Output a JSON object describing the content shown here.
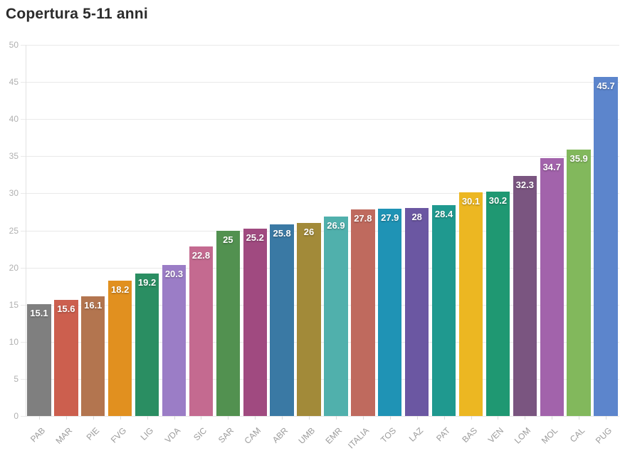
{
  "title": "Copertura 5-11 anni",
  "chart_data": {
    "type": "bar",
    "title": "Copertura 5-11 anni",
    "xlabel": "",
    "ylabel": "",
    "ylim": [
      0,
      50
    ],
    "yticks": [
      0,
      5,
      10,
      15,
      20,
      25,
      30,
      35,
      40,
      45,
      50
    ],
    "grid": true,
    "legend": "none",
    "value_label_position": "inside-top",
    "categories": [
      "PAB",
      "MAR",
      "PIE",
      "FVG",
      "LIG",
      "VDA",
      "SIC",
      "SAR",
      "CAM",
      "ABR",
      "UMB",
      "EMR",
      "ITALIA",
      "TOS",
      "LAZ",
      "PAT",
      "BAS",
      "VEN",
      "LOM",
      "MOL",
      "CAL",
      "PUG"
    ],
    "values": [
      15.1,
      15.6,
      16.1,
      18.2,
      19.2,
      20.3,
      22.8,
      25,
      25.2,
      25.8,
      26,
      26.9,
      27.8,
      27.9,
      28,
      28.4,
      30.1,
      30.2,
      32.3,
      34.7,
      35.9,
      45.7
    ],
    "value_labels": [
      "15.1",
      "15.6",
      "16.1",
      "18.2",
      "19.2",
      "20.3",
      "22.8",
      "25",
      "25.2",
      "25.8",
      "26",
      "26.9",
      "27.8",
      "27.9",
      "28",
      "28.4",
      "30.1",
      "30.2",
      "32.3",
      "34.7",
      "35.9",
      "45.7"
    ],
    "bar_colors": [
      "#7f7f7f",
      "#cc5f4e",
      "#b3754f",
      "#e1901f",
      "#2a8e62",
      "#9b7dc6",
      "#c46a90",
      "#529150",
      "#a04a80",
      "#3a79a4",
      "#a28a39",
      "#50b0ac",
      "#bf6a5e",
      "#1f93b5",
      "#6b57a2",
      "#1f998f",
      "#ecb722",
      "#1f9872",
      "#7a5580",
      "#a263ab",
      "#82b85c",
      "#5c85cc"
    ]
  },
  "colors": {
    "title_text": "#2b2b2b",
    "axis_tick_text": "#b0b0b0",
    "category_text": "#9b9b9b",
    "gridline": "#e9e9e9",
    "bar_value_text": "#ffffff",
    "background": "#ffffff"
  }
}
